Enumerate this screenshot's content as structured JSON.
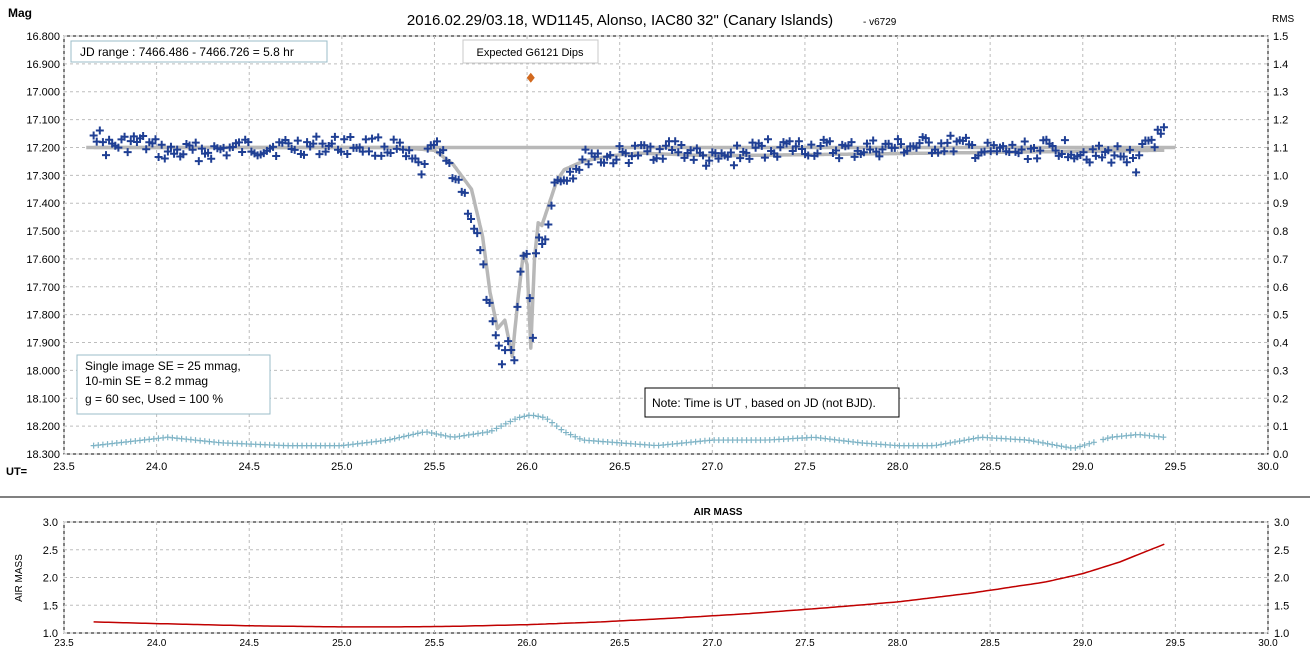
{
  "header": {
    "title": "2016.02.29/03.18,  WD1145, Alonso,  IAC80 32\" (Canary Islands)",
    "version": "- v6729",
    "left_axis_label": "Mag",
    "right_axis_label": "RMS",
    "ut_label": "UT="
  },
  "annotations": {
    "jd_range": "JD range  : 7466.486 - 7466.726  = 5.8 hr",
    "expected_dips": "Expected G6121 Dips",
    "se_line1": "Single image SE = 25 mmag,",
    "se_line2": "10-min SE = 8.2 mmag",
    "se_line3": "g = 60 sec, Used = 100  %",
    "note": "Note: Time is UT , based on JD (not BJD)."
  },
  "colors": {
    "data_points": "#1f3f94",
    "model": "#b8b8b8",
    "rms": "#7fb4c6",
    "expected_marker": "#d2691e",
    "airmass": "#c00000",
    "grid": "#bdbdbd"
  },
  "chart_data": [
    {
      "type": "scatter",
      "name": "light-curve",
      "title": "2016.02.29/03.18,  WD1145, Alonso,  IAC80 32\" (Canary Islands)",
      "xlabel": "UT=",
      "ylabel": "Mag",
      "y2label": "RMS",
      "xlim": [
        23.5,
        30.0
      ],
      "ylim": [
        16.8,
        18.3
      ],
      "y_inverted": true,
      "y2lim": [
        0,
        1.5
      ],
      "grid": true,
      "x_ticks": [
        "23.5",
        "24.0",
        "24.5",
        "25.0",
        "25.5",
        "26.0",
        "26.5",
        "27.0",
        "27.5",
        "28.0",
        "28.5",
        "29.0",
        "29.5",
        "30.0"
      ],
      "y_ticks": [
        "16.800",
        "16.900",
        "17.000",
        "17.100",
        "17.200",
        "17.300",
        "17.400",
        "17.500",
        "17.600",
        "17.700",
        "17.800",
        "17.900",
        "18.000",
        "18.100",
        "18.200",
        "18.300"
      ],
      "y2_ticks": [
        "1.5",
        "1.4",
        "1.3",
        "1.2",
        "1.1",
        "1.0",
        "0.9",
        "0.8",
        "0.7",
        "0.6",
        "0.5",
        "0.4",
        "0.3",
        "0.2",
        "0.1",
        "0.0"
      ],
      "expected_dip": {
        "x": 26.02,
        "y": 16.95
      },
      "data_x_range": [
        23.66,
        29.44
      ],
      "baseline_mag": 17.2,
      "model_curve": {
        "x": [
          23.66,
          25.3,
          25.5,
          25.6,
          25.7,
          25.76,
          25.8,
          25.84,
          25.88,
          25.92,
          25.95,
          25.98,
          26.0,
          26.02,
          26.04,
          26.06,
          26.08,
          26.12,
          26.16,
          26.2,
          26.3,
          26.45,
          26.6,
          27.0,
          29.44
        ],
        "y": [
          17.2,
          17.2,
          17.21,
          17.26,
          17.35,
          17.52,
          17.72,
          17.85,
          17.82,
          17.95,
          17.75,
          17.58,
          17.62,
          17.92,
          17.6,
          17.47,
          17.48,
          17.4,
          17.32,
          17.28,
          17.25,
          17.23,
          17.22,
          17.23,
          17.21
        ]
      },
      "observations": {
        "x": [
          23.66,
          23.72,
          23.9,
          24.06,
          24.35,
          24.5,
          25.05,
          25.28,
          25.45,
          25.48,
          25.52,
          25.6,
          25.65,
          25.7,
          25.74,
          25.78,
          25.82,
          25.86,
          25.9,
          25.93,
          25.95,
          25.97,
          25.99,
          26.01,
          26.03,
          26.05,
          26.07,
          26.09,
          26.12,
          26.15,
          26.2,
          26.25,
          26.3,
          26.35,
          26.4,
          26.6,
          26.8,
          27.0,
          27.3,
          27.5,
          27.7,
          28.0,
          28.3,
          28.5,
          28.9,
          29.1,
          29.25,
          29.29,
          29.33,
          29.4,
          29.44
        ],
        "y": [
          17.13,
          17.2,
          17.18,
          17.22,
          17.21,
          17.2,
          17.19,
          17.2,
          17.29,
          17.16,
          17.22,
          17.28,
          17.35,
          17.45,
          17.55,
          17.72,
          17.88,
          17.95,
          17.9,
          17.98,
          17.72,
          17.62,
          17.58,
          17.66,
          17.9,
          17.55,
          17.48,
          17.58,
          17.42,
          17.33,
          17.3,
          17.28,
          17.25,
          17.22,
          17.24,
          17.22,
          17.2,
          17.25,
          17.2,
          17.2,
          17.21,
          17.2,
          17.19,
          17.22,
          17.2,
          17.23,
          17.22,
          17.31,
          17.18,
          17.17,
          17.16
        ]
      },
      "rms_points": {
        "x": [
          23.66,
          24.06,
          24.35,
          24.7,
          25.0,
          25.25,
          25.45,
          25.6,
          25.8,
          25.95,
          26.02,
          26.1,
          26.2,
          26.3,
          26.5,
          26.7,
          27.0,
          27.3,
          27.55,
          27.8,
          28.0,
          28.2,
          28.45,
          28.7,
          28.95,
          29.05,
          29.15,
          29.3,
          29.44
        ],
        "y": [
          0.03,
          0.06,
          0.04,
          0.03,
          0.03,
          0.05,
          0.08,
          0.06,
          0.08,
          0.13,
          0.14,
          0.13,
          0.08,
          0.05,
          0.04,
          0.03,
          0.05,
          0.05,
          0.06,
          0.04,
          0.03,
          0.03,
          0.06,
          0.05,
          0.02,
          0.04,
          0.06,
          0.07,
          0.06
        ]
      }
    },
    {
      "type": "line",
      "name": "air-mass",
      "title": "AIR MASS",
      "ylabel": "AIR MASS",
      "xlim": [
        23.5,
        30.0
      ],
      "ylim": [
        1.0,
        3.0
      ],
      "grid": true,
      "x_ticks": [
        "23.5",
        "24.0",
        "24.5",
        "25.0",
        "25.5",
        "26.0",
        "26.5",
        "27.0",
        "27.5",
        "28.0",
        "28.5",
        "29.0",
        "29.5",
        "30.0"
      ],
      "y_ticks": [
        "3.0",
        "2.5",
        "2.0",
        "1.5",
        "1.0"
      ],
      "x": [
        23.66,
        24.0,
        24.5,
        25.0,
        25.3,
        25.6,
        26.0,
        26.4,
        26.8,
        27.2,
        27.6,
        28.0,
        28.4,
        28.8,
        29.0,
        29.2,
        29.44
      ],
      "y": [
        1.2,
        1.17,
        1.13,
        1.11,
        1.11,
        1.12,
        1.15,
        1.2,
        1.27,
        1.35,
        1.45,
        1.56,
        1.72,
        1.92,
        2.07,
        2.28,
        2.6
      ]
    }
  ]
}
